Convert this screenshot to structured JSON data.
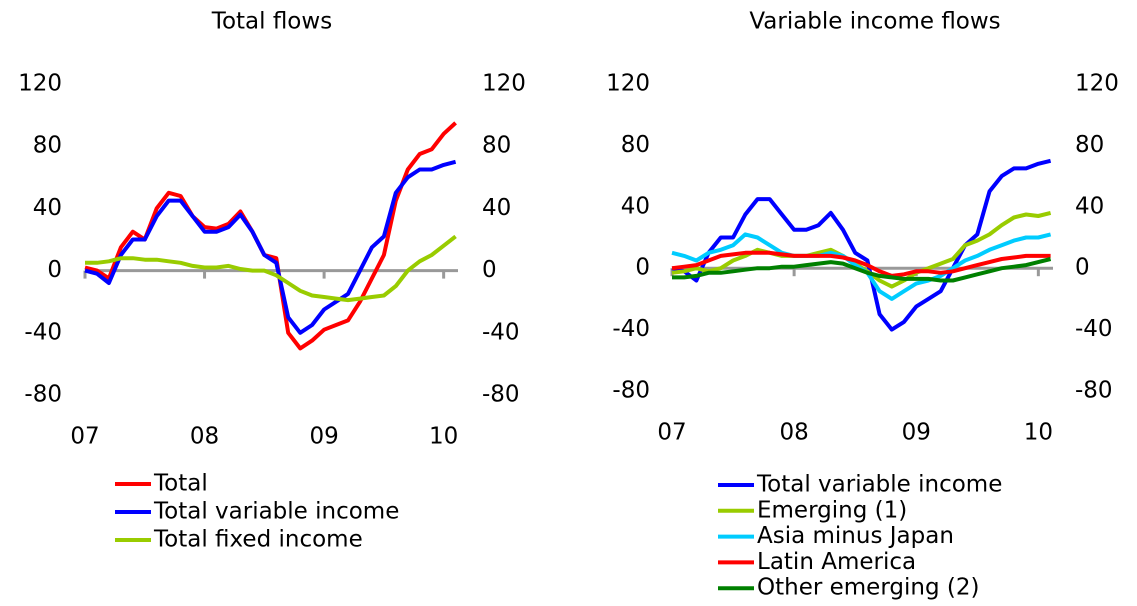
{
  "chart_data": [
    {
      "type": "line",
      "title": "Total flows",
      "x": [
        7.0,
        7.1,
        7.2,
        7.3,
        7.4,
        7.5,
        7.6,
        7.7,
        7.8,
        7.9,
        8.0,
        8.1,
        8.2,
        8.3,
        8.4,
        8.5,
        8.6,
        8.7,
        8.8,
        8.9,
        9.0,
        9.1,
        9.2,
        9.3,
        9.4,
        9.5,
        9.6,
        9.7,
        9.8,
        9.9,
        10.0,
        10.1
      ],
      "xlim": [
        7,
        10.12
      ],
      "xticks": [
        {
          "value": 7,
          "label": "07"
        },
        {
          "value": 8,
          "label": "08"
        },
        {
          "value": 9,
          "label": "09"
        },
        {
          "value": 10,
          "label": "10"
        }
      ],
      "ylim": [
        -80,
        120
      ],
      "yticks": [
        -80,
        -40,
        0,
        40,
        80,
        120
      ],
      "y2lim": [
        -80,
        120
      ],
      "y2ticks": [
        -80,
        -40,
        0,
        40,
        80,
        120
      ],
      "series": [
        {
          "name": "Total",
          "color": "#ff0000",
          "values": [
            2,
            0,
            -5,
            15,
            25,
            20,
            40,
            50,
            48,
            35,
            28,
            27,
            30,
            38,
            25,
            10,
            8,
            -40,
            -50,
            -45,
            -38,
            -35,
            -32,
            -20,
            -5,
            10,
            45,
            65,
            75,
            78,
            88,
            95
          ]
        },
        {
          "name": "Total variable income",
          "color": "#0000ff",
          "values": [
            0,
            -2,
            -8,
            10,
            20,
            20,
            35,
            45,
            45,
            35,
            25,
            25,
            28,
            36,
            25,
            10,
            5,
            -30,
            -40,
            -35,
            -25,
            -20,
            -15,
            0,
            15,
            22,
            50,
            60,
            65,
            65,
            68,
            70
          ]
        },
        {
          "name": "Total fixed income",
          "color": "#99cc00",
          "values": [
            5,
            5,
            6,
            8,
            8,
            7,
            7,
            6,
            5,
            3,
            2,
            2,
            3,
            1,
            0,
            0,
            -3,
            -8,
            -13,
            -16,
            -17,
            -18,
            -19,
            -18,
            -17,
            -16,
            -10,
            0,
            6,
            10,
            16,
            22
          ]
        }
      ]
    },
    {
      "type": "line",
      "title": "Variable income flows",
      "x": [
        7.0,
        7.1,
        7.2,
        7.3,
        7.4,
        7.5,
        7.6,
        7.7,
        7.8,
        7.9,
        8.0,
        8.1,
        8.2,
        8.3,
        8.4,
        8.5,
        8.6,
        8.7,
        8.8,
        8.9,
        9.0,
        9.1,
        9.2,
        9.3,
        9.4,
        9.5,
        9.6,
        9.7,
        9.8,
        9.9,
        10.0,
        10.1
      ],
      "xlim": [
        7,
        10.12
      ],
      "xticks": [
        {
          "value": 7,
          "label": "07"
        },
        {
          "value": 8,
          "label": "08"
        },
        {
          "value": 9,
          "label": "09"
        },
        {
          "value": 10,
          "label": "10"
        }
      ],
      "ylim": [
        -80,
        120
      ],
      "yticks": [
        -80,
        -40,
        0,
        40,
        80,
        120
      ],
      "y2lim": [
        -80,
        120
      ],
      "y2ticks": [
        -80,
        -40,
        0,
        40,
        80,
        120
      ],
      "series": [
        {
          "name": "Total variable income",
          "color": "#0000ff",
          "values": [
            0,
            -2,
            -8,
            10,
            20,
            20,
            35,
            45,
            45,
            35,
            25,
            25,
            28,
            36,
            25,
            10,
            5,
            -30,
            -40,
            -35,
            -25,
            -20,
            -15,
            0,
            15,
            22,
            50,
            60,
            65,
            65,
            68,
            70
          ]
        },
        {
          "name": "Emerging (1)",
          "color": "#99cc00",
          "values": [
            -3,
            -2,
            0,
            -2,
            0,
            5,
            8,
            12,
            10,
            8,
            8,
            8,
            10,
            12,
            8,
            3,
            -2,
            -8,
            -12,
            -8,
            -3,
            0,
            3,
            6,
            15,
            18,
            22,
            28,
            33,
            35,
            34,
            36
          ]
        },
        {
          "name": "Asia minus Japan",
          "color": "#00ccff",
          "values": [
            10,
            8,
            5,
            10,
            12,
            15,
            22,
            20,
            15,
            10,
            8,
            8,
            8,
            10,
            8,
            2,
            -3,
            -15,
            -20,
            -15,
            -10,
            -8,
            -5,
            0,
            5,
            8,
            12,
            15,
            18,
            20,
            20,
            22
          ]
        },
        {
          "name": "Latin America",
          "color": "#ff0000",
          "values": [
            0,
            1,
            2,
            5,
            8,
            9,
            10,
            10,
            10,
            9,
            8,
            8,
            8,
            8,
            7,
            5,
            2,
            -2,
            -5,
            -4,
            -2,
            -2,
            -3,
            -2,
            0,
            2,
            4,
            6,
            7,
            8,
            8,
            8
          ]
        },
        {
          "name": "Other emerging (2)",
          "color": "#008000",
          "values": [
            -6,
            -6,
            -5,
            -3,
            -3,
            -2,
            -1,
            0,
            0,
            1,
            1,
            2,
            3,
            4,
            3,
            0,
            -3,
            -5,
            -6,
            -7,
            -7,
            -7,
            -8,
            -8,
            -6,
            -4,
            -2,
            0,
            1,
            2,
            4,
            6
          ]
        }
      ]
    }
  ]
}
